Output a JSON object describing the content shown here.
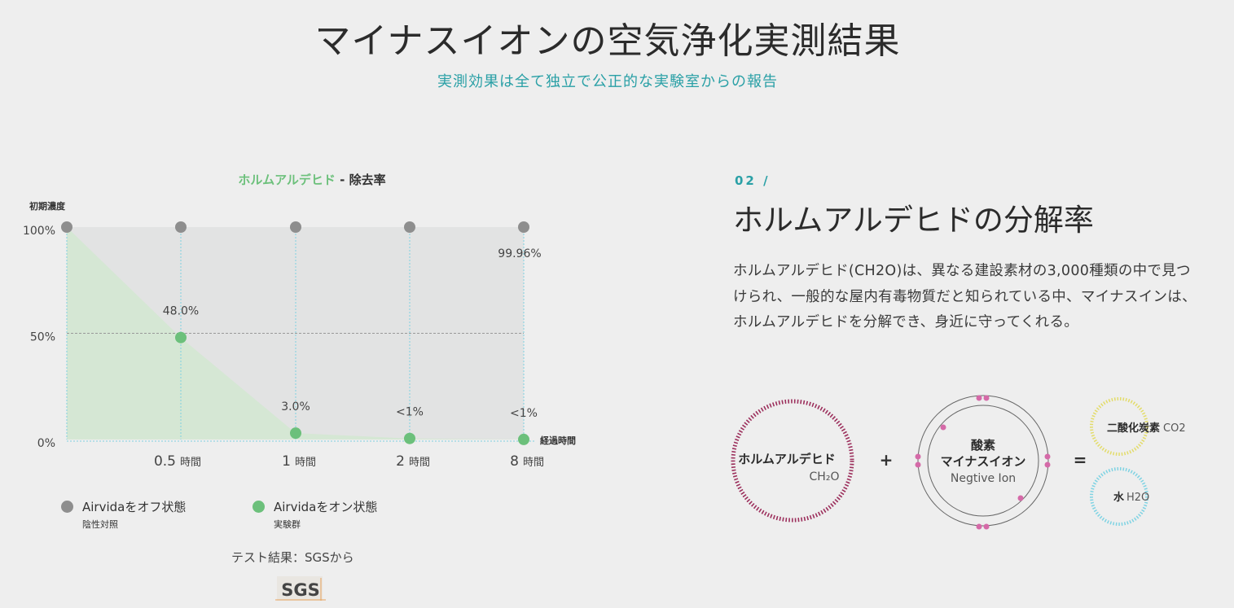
{
  "header": {
    "title": "マイナスイオンの空気浄化実測結果",
    "subtitle": "実測効果は全て独立で公正的な実験室からの報告"
  },
  "chart": {
    "title_highlight": "ホルムアルデヒド",
    "title_rest": " - 除去率",
    "y_axis_title": "初期濃度",
    "x_axis_title": "経過時間",
    "y_ticks": [
      "100%",
      "50%",
      "0%"
    ],
    "x_tick_labels": [
      {
        "num": "0.5",
        "unit": "時間"
      },
      {
        "num": "1",
        "unit": "時間"
      },
      {
        "num": "2",
        "unit": "時間"
      },
      {
        "num": "8",
        "unit": "時間"
      }
    ],
    "legend": [
      {
        "label": "Airvidaをオフ状態",
        "sub": "陰性対照",
        "color": "#8e8e8e"
      },
      {
        "label": "Airvidaをオン状態",
        "sub": "実験群",
        "color": "#6cc07b"
      }
    ],
    "test_result": "テスト結果：SGSから",
    "logo_text": "SGS"
  },
  "chart_data": {
    "type": "area",
    "title": "ホルムアルデヒド - 除去率",
    "ylabel": "初期濃度",
    "xlabel": "経過時間",
    "x": [
      0,
      0.5,
      1,
      2,
      8
    ],
    "ylim": [
      0,
      100
    ],
    "series": [
      {
        "name": "Airvidaをオフ状態",
        "values": [
          100,
          100,
          100,
          100,
          100
        ],
        "color": "#8e8e8e"
      },
      {
        "name": "Airvidaをオン状態",
        "values": [
          100,
          48.0,
          3.0,
          0.5,
          0.04
        ],
        "color": "#6cc07b"
      }
    ],
    "data_labels": [
      "",
      "48.0%",
      "3.0%",
      "<1%",
      "<1%"
    ],
    "annotation": "99.96%"
  },
  "section": {
    "number": "02 /",
    "title": "ホルムアルデヒドの分解率",
    "body": "ホルムアルデヒド(CH2O)は、異なる建設素材の3,000種類の中で見つけられ、一般的な屋内有毒物質だと知られている中、マイナスインは、ホルムアルデヒドを分解でき、身近に守ってくれる。"
  },
  "diagram": {
    "formaldehyde": {
      "name": "ホルムアルデヒド",
      "formula": "CH₂O",
      "color": "#9c2f5c"
    },
    "plus": "+",
    "ion": {
      "line1": "酸素",
      "line2": "マイナスイオン",
      "line3": "Negtive Ion",
      "dot_color": "#d56aa8"
    },
    "equals": "=",
    "co2": {
      "name": "二酸化炭素",
      "formula": "CO2",
      "color": "#e3dc6a"
    },
    "h2o": {
      "name": "水",
      "formula": "H2O",
      "color": "#7fd3e3"
    }
  }
}
